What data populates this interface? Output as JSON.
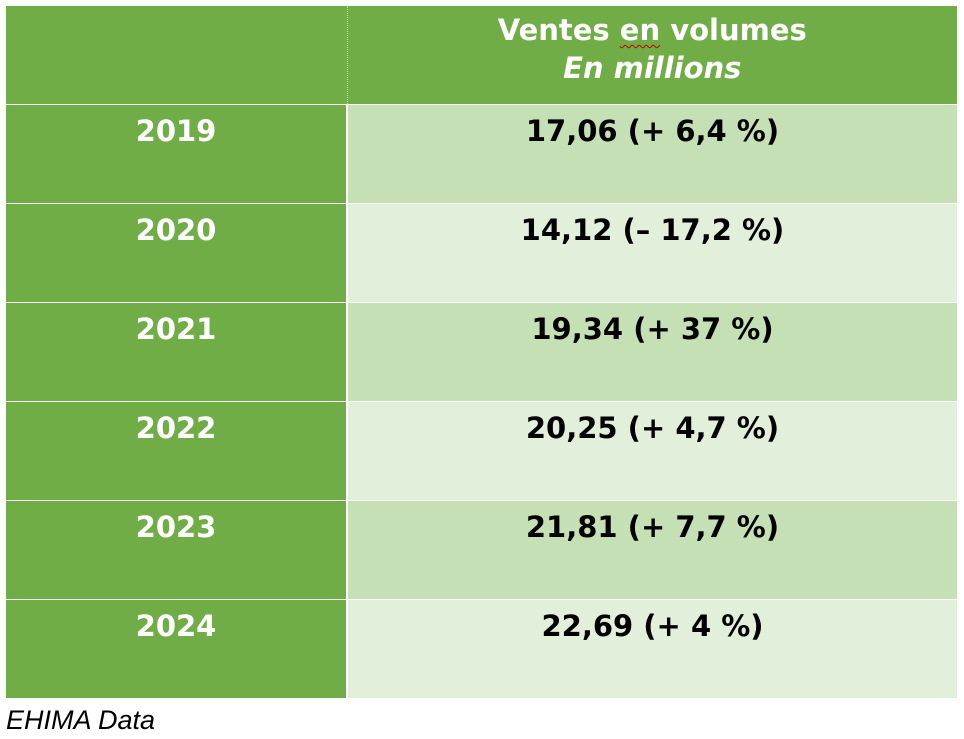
{
  "table": {
    "header": {
      "empty_label": "",
      "title_prefix": "Ventes ",
      "title_underlined": "en",
      "title_suffix": " volumes",
      "subtitle": "En millions"
    },
    "rows": [
      {
        "year": "2019",
        "value": "17,06 (+ 6,4 %)"
      },
      {
        "year": "2020",
        "value": "14,12 (– 17,2 %)"
      },
      {
        "year": "2021",
        "value": "19,34 (+ 37 %)"
      },
      {
        "year": "2022",
        "value": "20,25 (+ 4,7 %)"
      },
      {
        "year": "2023",
        "value": "21,81 (+ 7,7 %)"
      },
      {
        "year": "2024",
        "value": "22,69 (+ 4 %)"
      }
    ]
  },
  "source": "EHIMA Data",
  "colors": {
    "header_green": "#70ad47",
    "row_light_1": "#c5e0b4",
    "row_light_2": "#e2efda"
  }
}
